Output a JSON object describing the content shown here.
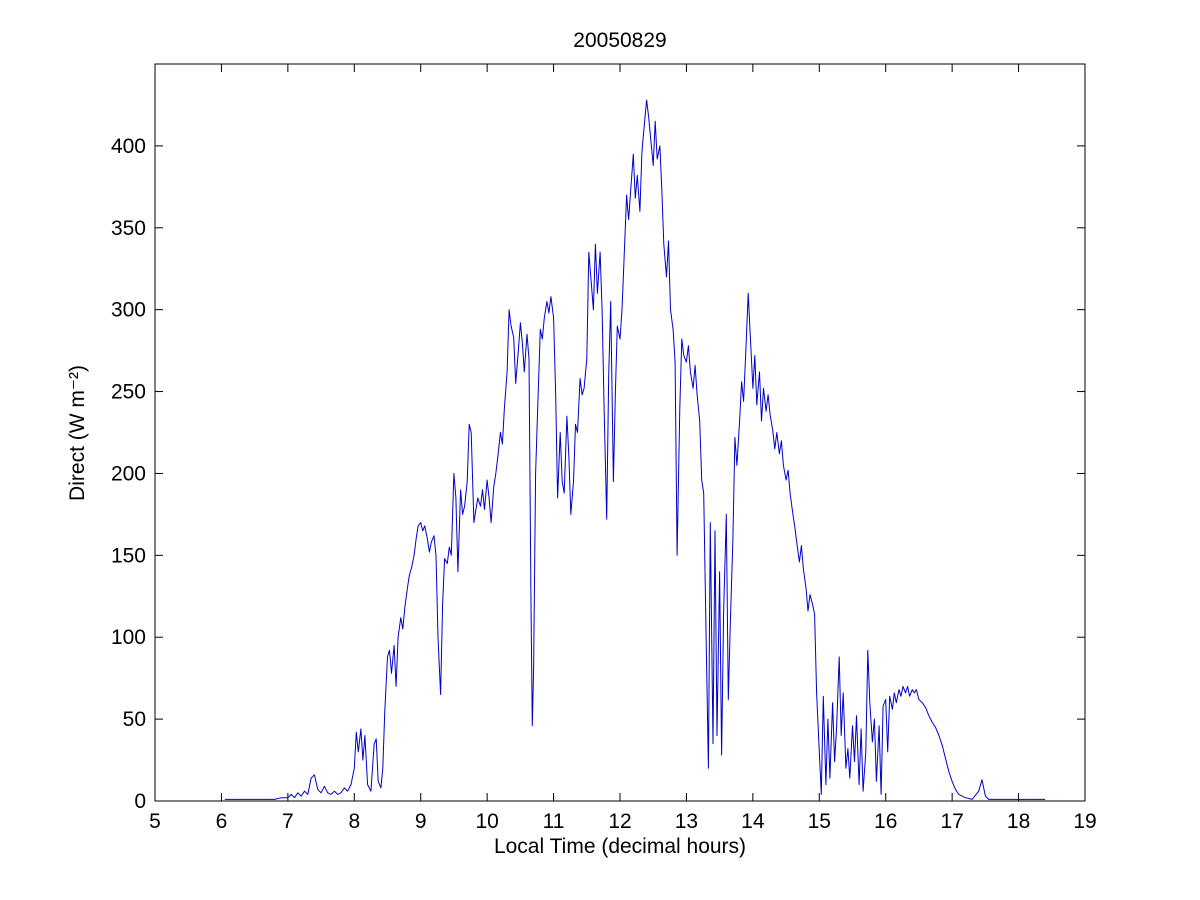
{
  "chart_data": {
    "type": "line",
    "title": "20050829",
    "xlabel": "Local Time (decimal hours)",
    "ylabel": "Direct (W m⁻²)",
    "xlim": [
      5,
      19
    ],
    "ylim": [
      0,
      450
    ],
    "xticks": [
      5,
      6,
      7,
      8,
      9,
      10,
      11,
      12,
      13,
      14,
      15,
      16,
      17,
      18,
      19
    ],
    "yticks": [
      0,
      50,
      100,
      150,
      200,
      250,
      300,
      350,
      400
    ],
    "line_color": "#0000CC",
    "axis_color": "#000000",
    "grid": false,
    "legend": "none",
    "series": [
      {
        "name": "Direct",
        "points": [
          [
            6.05,
            1
          ],
          [
            6.2,
            1
          ],
          [
            6.4,
            1
          ],
          [
            6.6,
            1
          ],
          [
            6.8,
            1
          ],
          [
            6.9,
            2
          ],
          [
            7.0,
            2
          ],
          [
            7.05,
            4
          ],
          [
            7.1,
            2
          ],
          [
            7.15,
            5
          ],
          [
            7.2,
            3
          ],
          [
            7.25,
            6
          ],
          [
            7.3,
            4
          ],
          [
            7.35,
            14
          ],
          [
            7.4,
            16
          ],
          [
            7.45,
            7
          ],
          [
            7.5,
            5
          ],
          [
            7.55,
            9
          ],
          [
            7.6,
            5
          ],
          [
            7.65,
            4
          ],
          [
            7.7,
            6
          ],
          [
            7.75,
            4
          ],
          [
            7.8,
            5
          ],
          [
            7.85,
            8
          ],
          [
            7.9,
            6
          ],
          [
            7.95,
            10
          ],
          [
            8.0,
            20
          ],
          [
            8.03,
            42
          ],
          [
            8.06,
            30
          ],
          [
            8.1,
            44
          ],
          [
            8.13,
            25
          ],
          [
            8.16,
            40
          ],
          [
            8.2,
            10
          ],
          [
            8.25,
            6
          ],
          [
            8.3,
            35
          ],
          [
            8.33,
            38
          ],
          [
            8.36,
            12
          ],
          [
            8.4,
            8
          ],
          [
            8.43,
            20
          ],
          [
            8.46,
            55
          ],
          [
            8.5,
            88
          ],
          [
            8.53,
            92
          ],
          [
            8.56,
            78
          ],
          [
            8.6,
            95
          ],
          [
            8.63,
            70
          ],
          [
            8.66,
            100
          ],
          [
            8.7,
            112
          ],
          [
            8.73,
            105
          ],
          [
            8.76,
            118
          ],
          [
            8.8,
            130
          ],
          [
            8.83,
            138
          ],
          [
            8.86,
            142
          ],
          [
            8.9,
            150
          ],
          [
            8.93,
            160
          ],
          [
            8.96,
            168
          ],
          [
            9.0,
            170
          ],
          [
            9.03,
            165
          ],
          [
            9.06,
            168
          ],
          [
            9.1,
            160
          ],
          [
            9.13,
            152
          ],
          [
            9.16,
            158
          ],
          [
            9.2,
            162
          ],
          [
            9.23,
            150
          ],
          [
            9.26,
            100
          ],
          [
            9.3,
            65
          ],
          [
            9.33,
            120
          ],
          [
            9.36,
            148
          ],
          [
            9.4,
            145
          ],
          [
            9.43,
            155
          ],
          [
            9.46,
            150
          ],
          [
            9.5,
            200
          ],
          [
            9.53,
            185
          ],
          [
            9.56,
            140
          ],
          [
            9.6,
            190
          ],
          [
            9.63,
            175
          ],
          [
            9.66,
            180
          ],
          [
            9.7,
            195
          ],
          [
            9.73,
            230
          ],
          [
            9.76,
            225
          ],
          [
            9.8,
            170
          ],
          [
            9.83,
            178
          ],
          [
            9.86,
            185
          ],
          [
            9.9,
            180
          ],
          [
            9.93,
            190
          ],
          [
            9.96,
            178
          ],
          [
            10.0,
            196
          ],
          [
            10.03,
            185
          ],
          [
            10.06,
            170
          ],
          [
            10.1,
            192
          ],
          [
            10.13,
            200
          ],
          [
            10.16,
            210
          ],
          [
            10.2,
            225
          ],
          [
            10.23,
            218
          ],
          [
            10.26,
            240
          ],
          [
            10.3,
            262
          ],
          [
            10.33,
            300
          ],
          [
            10.36,
            290
          ],
          [
            10.4,
            283
          ],
          [
            10.43,
            255
          ],
          [
            10.46,
            270
          ],
          [
            10.5,
            292
          ],
          [
            10.53,
            280
          ],
          [
            10.56,
            262
          ],
          [
            10.6,
            285
          ],
          [
            10.63,
            270
          ],
          [
            10.66,
            120
          ],
          [
            10.68,
            46
          ],
          [
            10.7,
            80
          ],
          [
            10.73,
            200
          ],
          [
            10.76,
            238
          ],
          [
            10.8,
            288
          ],
          [
            10.83,
            282
          ],
          [
            10.86,
            295
          ],
          [
            10.9,
            305
          ],
          [
            10.93,
            298
          ],
          [
            10.96,
            308
          ],
          [
            11.0,
            295
          ],
          [
            11.03,
            250
          ],
          [
            11.06,
            185
          ],
          [
            11.1,
            225
          ],
          [
            11.13,
            195
          ],
          [
            11.16,
            188
          ],
          [
            11.2,
            235
          ],
          [
            11.23,
            210
          ],
          [
            11.26,
            175
          ],
          [
            11.3,
            195
          ],
          [
            11.33,
            230
          ],
          [
            11.36,
            225
          ],
          [
            11.4,
            258
          ],
          [
            11.43,
            248
          ],
          [
            11.46,
            252
          ],
          [
            11.5,
            270
          ],
          [
            11.53,
            335
          ],
          [
            11.56,
            320
          ],
          [
            11.6,
            300
          ],
          [
            11.63,
            340
          ],
          [
            11.66,
            310
          ],
          [
            11.7,
            335
          ],
          [
            11.73,
            300
          ],
          [
            11.76,
            240
          ],
          [
            11.8,
            172
          ],
          [
            11.83,
            260
          ],
          [
            11.86,
            305
          ],
          [
            11.9,
            195
          ],
          [
            11.93,
            250
          ],
          [
            11.96,
            290
          ],
          [
            12.0,
            282
          ],
          [
            12.03,
            300
          ],
          [
            12.06,
            330
          ],
          [
            12.1,
            370
          ],
          [
            12.13,
            355
          ],
          [
            12.16,
            372
          ],
          [
            12.2,
            395
          ],
          [
            12.23,
            368
          ],
          [
            12.26,
            382
          ],
          [
            12.3,
            360
          ],
          [
            12.33,
            396
          ],
          [
            12.36,
            410
          ],
          [
            12.4,
            428
          ],
          [
            12.43,
            418
          ],
          [
            12.46,
            405
          ],
          [
            12.5,
            388
          ],
          [
            12.53,
            415
          ],
          [
            12.56,
            392
          ],
          [
            12.6,
            400
          ],
          [
            12.63,
            372
          ],
          [
            12.66,
            340
          ],
          [
            12.7,
            320
          ],
          [
            12.73,
            342
          ],
          [
            12.76,
            300
          ],
          [
            12.8,
            288
          ],
          [
            12.83,
            268
          ],
          [
            12.86,
            150
          ],
          [
            12.9,
            240
          ],
          [
            12.93,
            282
          ],
          [
            12.96,
            272
          ],
          [
            13.0,
            268
          ],
          [
            13.03,
            278
          ],
          [
            13.06,
            262
          ],
          [
            13.1,
            252
          ],
          [
            13.13,
            266
          ],
          [
            13.16,
            248
          ],
          [
            13.2,
            232
          ],
          [
            13.23,
            196
          ],
          [
            13.26,
            188
          ],
          [
            13.3,
            90
          ],
          [
            13.33,
            20
          ],
          [
            13.36,
            170
          ],
          [
            13.4,
            35
          ],
          [
            13.43,
            165
          ],
          [
            13.46,
            40
          ],
          [
            13.5,
            140
          ],
          [
            13.53,
            28
          ],
          [
            13.56,
            115
          ],
          [
            13.6,
            175
          ],
          [
            13.63,
            62
          ],
          [
            13.66,
            108
          ],
          [
            13.7,
            160
          ],
          [
            13.73,
            222
          ],
          [
            13.76,
            205
          ],
          [
            13.8,
            232
          ],
          [
            13.83,
            256
          ],
          [
            13.86,
            244
          ],
          [
            13.9,
            280
          ],
          [
            13.93,
            310
          ],
          [
            13.96,
            285
          ],
          [
            14.0,
            252
          ],
          [
            14.03,
            272
          ],
          [
            14.06,
            242
          ],
          [
            14.1,
            262
          ],
          [
            14.13,
            232
          ],
          [
            14.16,
            252
          ],
          [
            14.2,
            238
          ],
          [
            14.23,
            248
          ],
          [
            14.26,
            236
          ],
          [
            14.3,
            226
          ],
          [
            14.33,
            215
          ],
          [
            14.36,
            225
          ],
          [
            14.4,
            212
          ],
          [
            14.43,
            220
          ],
          [
            14.46,
            205
          ],
          [
            14.5,
            196
          ],
          [
            14.53,
            202
          ],
          [
            14.56,
            188
          ],
          [
            14.6,
            176
          ],
          [
            14.63,
            168
          ],
          [
            14.66,
            158
          ],
          [
            14.7,
            146
          ],
          [
            14.73,
            156
          ],
          [
            14.76,
            142
          ],
          [
            14.8,
            130
          ],
          [
            14.83,
            116
          ],
          [
            14.86,
            126
          ],
          [
            14.9,
            120
          ],
          [
            14.93,
            114
          ],
          [
            14.96,
            66
          ],
          [
            15.0,
            30
          ],
          [
            15.03,
            4
          ],
          [
            15.06,
            64
          ],
          [
            15.1,
            10
          ],
          [
            15.13,
            50
          ],
          [
            15.16,
            14
          ],
          [
            15.2,
            60
          ],
          [
            15.23,
            24
          ],
          [
            15.26,
            45
          ],
          [
            15.3,
            88
          ],
          [
            15.33,
            40
          ],
          [
            15.36,
            66
          ],
          [
            15.4,
            20
          ],
          [
            15.43,
            32
          ],
          [
            15.46,
            14
          ],
          [
            15.5,
            46
          ],
          [
            15.53,
            24
          ],
          [
            15.56,
            52
          ],
          [
            15.6,
            10
          ],
          [
            15.63,
            44
          ],
          [
            15.66,
            6
          ],
          [
            15.7,
            30
          ],
          [
            15.73,
            92
          ],
          [
            15.76,
            60
          ],
          [
            15.8,
            36
          ],
          [
            15.83,
            50
          ],
          [
            15.86,
            12
          ],
          [
            15.9,
            46
          ],
          [
            15.93,
            4
          ],
          [
            15.96,
            58
          ],
          [
            16.0,
            62
          ],
          [
            16.03,
            30
          ],
          [
            16.06,
            64
          ],
          [
            16.1,
            56
          ],
          [
            16.13,
            66
          ],
          [
            16.16,
            60
          ],
          [
            16.2,
            68
          ],
          [
            16.23,
            64
          ],
          [
            16.26,
            70
          ],
          [
            16.3,
            66
          ],
          [
            16.33,
            70
          ],
          [
            16.36,
            64
          ],
          [
            16.4,
            68
          ],
          [
            16.43,
            66
          ],
          [
            16.46,
            68
          ],
          [
            16.5,
            62
          ],
          [
            16.55,
            60
          ],
          [
            16.6,
            57
          ],
          [
            16.65,
            52
          ],
          [
            16.7,
            48
          ],
          [
            16.75,
            45
          ],
          [
            16.8,
            40
          ],
          [
            16.85,
            34
          ],
          [
            16.9,
            26
          ],
          [
            16.95,
            18
          ],
          [
            17.0,
            12
          ],
          [
            17.05,
            7
          ],
          [
            17.1,
            4
          ],
          [
            17.15,
            3
          ],
          [
            17.2,
            2
          ],
          [
            17.3,
            1
          ],
          [
            17.4,
            6
          ],
          [
            17.45,
            13
          ],
          [
            17.5,
            3
          ],
          [
            17.55,
            1
          ],
          [
            17.7,
            1
          ],
          [
            17.9,
            1
          ],
          [
            18.1,
            1
          ],
          [
            18.3,
            1
          ],
          [
            18.4,
            1
          ]
        ]
      }
    ]
  }
}
